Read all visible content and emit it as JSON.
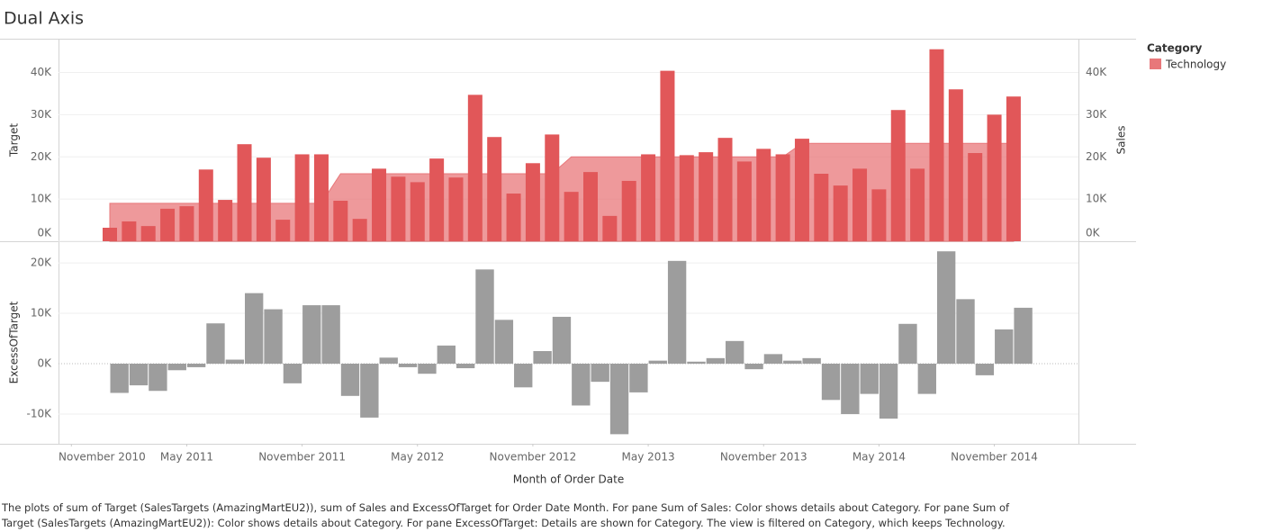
{
  "title": "Dual Axis",
  "legend": {
    "title": "Category",
    "entries": [
      {
        "name": "Technology",
        "color": "#e8777a"
      }
    ]
  },
  "caption": "The plots of sum of Target (SalesTargets (AmazingMartEU2)), sum of Sales and ExcessOfTarget for Order Date Month.  For pane Sum of Sales:  Color shows details about Category.  For pane Sum of Target (SalesTargets (AmazingMartEU2)):  Color shows details about Category.  For pane ExcessOfTarget:  Details are shown for Category. The view is filtered on Category, which keeps Technology.",
  "chart_data": [
    {
      "type": "bar",
      "ylabel": "Target",
      "y2label": "Sales",
      "x": [
        "2011-01",
        "2011-02",
        "2011-03",
        "2011-04",
        "2011-05",
        "2011-06",
        "2011-07",
        "2011-08",
        "2011-09",
        "2011-10",
        "2011-11",
        "2011-12",
        "2012-01",
        "2012-02",
        "2012-03",
        "2012-04",
        "2012-05",
        "2012-06",
        "2012-07",
        "2012-08",
        "2012-09",
        "2012-10",
        "2012-11",
        "2012-12",
        "2013-01",
        "2013-02",
        "2013-03",
        "2013-04",
        "2013-05",
        "2013-06",
        "2013-07",
        "2013-08",
        "2013-09",
        "2013-10",
        "2013-11",
        "2013-12",
        "2014-01",
        "2014-02",
        "2014-03",
        "2014-04",
        "2014-05",
        "2014-06",
        "2014-07",
        "2014-08",
        "2014-09",
        "2014-10",
        "2014-11",
        "2014-12"
      ],
      "ylim": [
        0,
        48000
      ],
      "yticks": [
        {
          "value": 0,
          "label": "0K"
        },
        {
          "value": 10000,
          "label": "10K"
        },
        {
          "value": 20000,
          "label": "20K"
        },
        {
          "value": 30000,
          "label": "30K"
        },
        {
          "value": 40000,
          "label": "40K"
        }
      ],
      "y2lim": [
        0,
        48000
      ],
      "y2ticks": [
        {
          "value": 0,
          "label": "0K"
        },
        {
          "value": 10000,
          "label": "10K"
        },
        {
          "value": 20000,
          "label": "20K"
        },
        {
          "value": 30000,
          "label": "30K"
        },
        {
          "value": 40000,
          "label": "40K"
        }
      ],
      "grid": true,
      "series": [
        {
          "type": "area",
          "color": "#e8777a",
          "values": [
            9000,
            9000,
            9000,
            9000,
            9000,
            9000,
            9000,
            9000,
            9000,
            9000,
            9000,
            9000,
            16000,
            16000,
            16000,
            16000,
            16000,
            16000,
            16000,
            16000,
            16000,
            16000,
            16000,
            16000,
            20000,
            20000,
            20000,
            20000,
            20000,
            20000,
            20000,
            20000,
            20000,
            20000,
            20000,
            20000,
            23200,
            23200,
            23200,
            23200,
            23200,
            23200,
            23200,
            23200,
            23200,
            23200,
            23200,
            23200
          ]
        },
        {
          "type": "bar",
          "axis": "y2",
          "color": "#e15759",
          "values": [
            3200,
            4700,
            3600,
            7700,
            8300,
            17000,
            9800,
            23000,
            19800,
            5100,
            20600,
            20600,
            9600,
            5300,
            17200,
            15300,
            14000,
            19600,
            15100,
            34700,
            24700,
            11300,
            18500,
            25300,
            11700,
            16400,
            6000,
            14300,
            20600,
            40400,
            20400,
            21100,
            24500,
            18900,
            21900,
            20600,
            24300,
            16000,
            13200,
            17200,
            12300,
            31100,
            17200,
            45500,
            36000,
            20900,
            30000,
            34300
          ]
        }
      ]
    },
    {
      "type": "bar",
      "ylabel": "ExcessOfTarget",
      "xlabel": "Month of Order Date",
      "color": "#9d9d9d",
      "x": [
        "2011-01",
        "2011-02",
        "2011-03",
        "2011-04",
        "2011-05",
        "2011-06",
        "2011-07",
        "2011-08",
        "2011-09",
        "2011-10",
        "2011-11",
        "2011-12",
        "2012-01",
        "2012-02",
        "2012-03",
        "2012-04",
        "2012-05",
        "2012-06",
        "2012-07",
        "2012-08",
        "2012-09",
        "2012-10",
        "2012-11",
        "2012-12",
        "2013-01",
        "2013-02",
        "2013-03",
        "2013-04",
        "2013-05",
        "2013-06",
        "2013-07",
        "2013-08",
        "2013-09",
        "2013-10",
        "2013-11",
        "2013-12",
        "2014-01",
        "2014-02",
        "2014-03",
        "2014-04",
        "2014-05",
        "2014-06",
        "2014-07",
        "2014-08",
        "2014-09",
        "2014-10",
        "2014-11",
        "2014-12"
      ],
      "values": [
        -5800,
        -4300,
        -5400,
        -1300,
        -700,
        8000,
        800,
        14000,
        10800,
        -3900,
        11600,
        11600,
        -6400,
        -10700,
        1200,
        -700,
        -2000,
        3600,
        -900,
        18700,
        8700,
        -4700,
        2500,
        9300,
        -8300,
        -3600,
        -14000,
        -5700,
        600,
        20400,
        400,
        1100,
        4500,
        -1100,
        1900,
        600,
        1100,
        -7200,
        -10000,
        -6000,
        -10900,
        7900,
        -6000,
        22300,
        12800,
        -2300,
        6800,
        11100
      ],
      "ylim": [
        -15900,
        24300
      ],
      "yticks": [
        {
          "value": -10000,
          "label": "-10K"
        },
        {
          "value": 0,
          "label": "0K"
        },
        {
          "value": 10000,
          "label": "10K"
        },
        {
          "value": 20000,
          "label": "20K"
        }
      ],
      "xticks": [
        {
          "value": "2010-11",
          "label": "November 2010"
        },
        {
          "value": "2011-05",
          "label": "May 2011"
        },
        {
          "value": "2011-11",
          "label": "November 2011"
        },
        {
          "value": "2012-05",
          "label": "May 2012"
        },
        {
          "value": "2012-11",
          "label": "November 2012"
        },
        {
          "value": "2013-05",
          "label": "May 2013"
        },
        {
          "value": "2013-11",
          "label": "November 2013"
        },
        {
          "value": "2014-05",
          "label": "May 2014"
        },
        {
          "value": "2014-11",
          "label": "November 2014"
        }
      ],
      "grid": true
    }
  ]
}
